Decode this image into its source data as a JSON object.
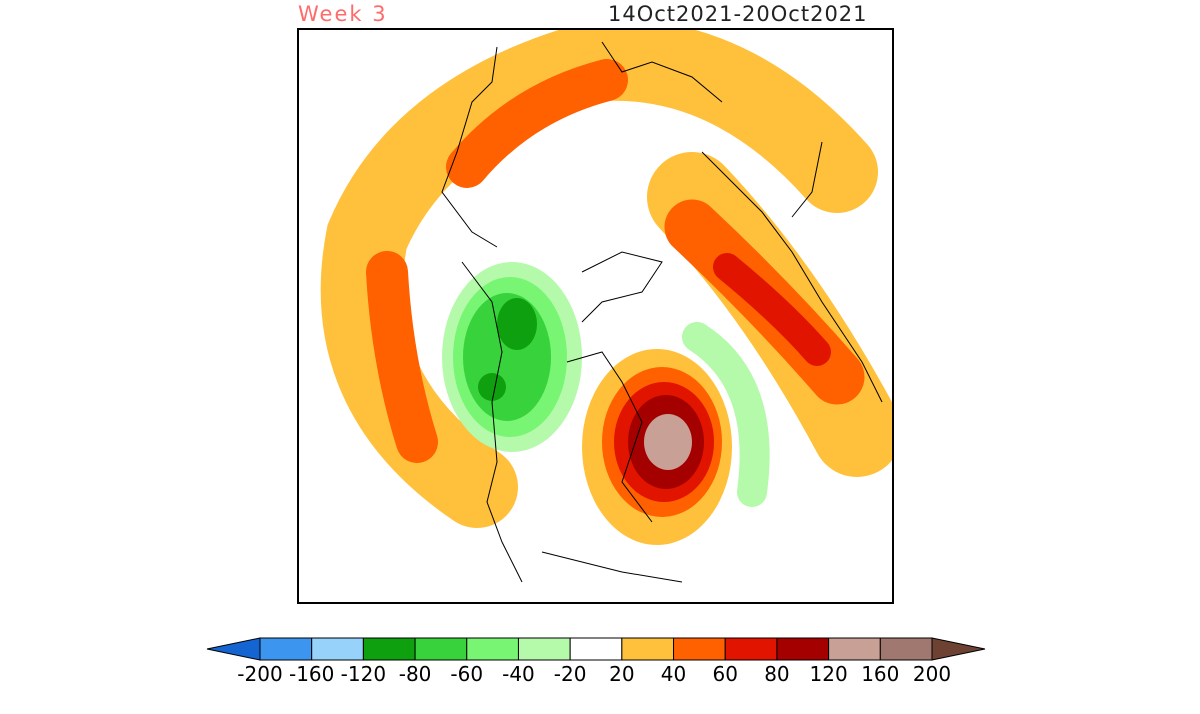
{
  "header": {
    "title": "Week 3",
    "date_range": "14Oct2021-20Oct2021"
  },
  "colorbar": {
    "labels": [
      "-200",
      "-160",
      "-120",
      "-80",
      "-60",
      "-40",
      "-20",
      "20",
      "40",
      "60",
      "80",
      "120",
      "160",
      "200"
    ],
    "colors": [
      "#3c96f0",
      "#96d2fa",
      "#0fa00f",
      "#37d23c",
      "#78f573",
      "#b4faaa",
      "#ffffff",
      "#ffc03c",
      "#ff6000",
      "#e11400",
      "#a50000",
      "#c8a096",
      "#a07870"
    ],
    "under_color": "#1464d2",
    "over_color": "#6e4232"
  }
}
